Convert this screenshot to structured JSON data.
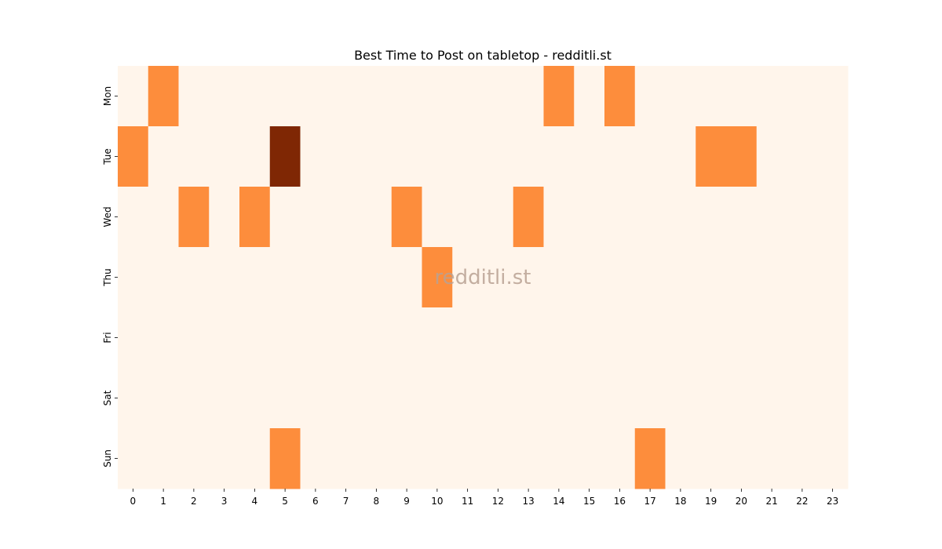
{
  "chart_data": {
    "type": "heatmap",
    "title": "Best Time to Post on tabletop - redditli.st",
    "watermark": "redditli.st",
    "x_ticks": [
      "0",
      "1",
      "2",
      "3",
      "4",
      "5",
      "6",
      "7",
      "8",
      "9",
      "10",
      "11",
      "12",
      "13",
      "14",
      "15",
      "16",
      "17",
      "18",
      "19",
      "20",
      "21",
      "22",
      "23"
    ],
    "y_ticks": [
      "Mon",
      "Tue",
      "Wed",
      "Thu",
      "Fri",
      "Sat",
      "Sun"
    ],
    "colormap": "Oranges",
    "vmin": 0,
    "vmax": 2,
    "colors": {
      "low": "#fff5eb",
      "mid": "#fd8d3c",
      "high": "#7f2704"
    },
    "values": [
      [
        0,
        1,
        0,
        0,
        0,
        0,
        0,
        0,
        0,
        0,
        0,
        0,
        0,
        0,
        1,
        0,
        1,
        0,
        0,
        0,
        0,
        0,
        0,
        0
      ],
      [
        1,
        0,
        0,
        0,
        0,
        2,
        0,
        0,
        0,
        0,
        0,
        0,
        0,
        0,
        0,
        0,
        0,
        0,
        0,
        1,
        1,
        0,
        0,
        0
      ],
      [
        0,
        0,
        1,
        0,
        1,
        0,
        0,
        0,
        0,
        1,
        0,
        0,
        0,
        1,
        0,
        0,
        0,
        0,
        0,
        0,
        0,
        0,
        0,
        0
      ],
      [
        0,
        0,
        0,
        0,
        0,
        0,
        0,
        0,
        0,
        0,
        1,
        0,
        0,
        0,
        0,
        0,
        0,
        0,
        0,
        0,
        0,
        0,
        0,
        0
      ],
      [
        0,
        0,
        0,
        0,
        0,
        0,
        0,
        0,
        0,
        0,
        0,
        0,
        0,
        0,
        0,
        0,
        0,
        0,
        0,
        0,
        0,
        0,
        0,
        0
      ],
      [
        0,
        0,
        0,
        0,
        0,
        0,
        0,
        0,
        0,
        0,
        0,
        0,
        0,
        0,
        0,
        0,
        0,
        0,
        0,
        0,
        0,
        0,
        0,
        0
      ],
      [
        0,
        0,
        0,
        0,
        0,
        1,
        0,
        0,
        0,
        0,
        0,
        0,
        0,
        0,
        0,
        0,
        0,
        1,
        0,
        0,
        0,
        0,
        0,
        0
      ]
    ]
  }
}
